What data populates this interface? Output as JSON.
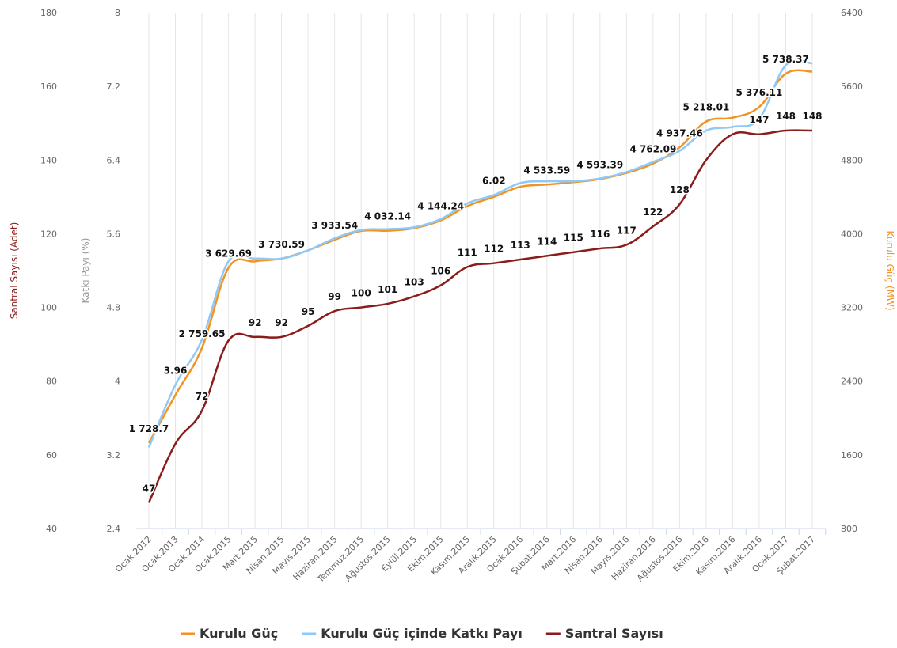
{
  "chart_data": {
    "type": "line",
    "categories": [
      "Ocak.2012",
      "Ocak.2013",
      "Ocak.2014",
      "Ocak.2015",
      "Mart.2015",
      "Nisan.2015",
      "Mayıs.2015",
      "Haziran.2015",
      "Temmuz.2015",
      "Ağustos.2015",
      "Eylül.2015",
      "Ekim.2015",
      "Kasım.2015",
      "Aralık.2015",
      "Ocak.2016",
      "Şubat.2016",
      "Mart.2016",
      "Nisan.2016",
      "Mayıs.2016",
      "Haziran.2016",
      "Ağustos.2016",
      "Ekim.2016",
      "Kasım.2016",
      "Aralık.2016",
      "Ocak.2017",
      "Şubat.2017"
    ],
    "y_label": "Santral Sayısı (Adet)",
    "y2_label": "Katkı Payı (%)",
    "y3_label": "Kurulu Güç (MW)",
    "ylim": [
      40,
      180
    ],
    "yticks": [
      40,
      60,
      80,
      100,
      120,
      140,
      160,
      180
    ],
    "y2lim": [
      2.4,
      8
    ],
    "y2ticks": [
      2.4,
      3.2,
      4,
      4.8,
      5.6,
      6.4,
      7.2,
      8
    ],
    "y3lim": [
      800,
      6400
    ],
    "y3ticks": [
      800,
      1600,
      2400,
      3200,
      4000,
      4800,
      5600,
      6400
    ],
    "grid": true,
    "legend": "bottom",
    "series": [
      {
        "name": "Kurulu Güç",
        "color": "#f39324",
        "axis": "y3",
        "values": [
          1728.7,
          2250,
          2759.65,
          3629.69,
          3700,
          3730.59,
          3820,
          3933.54,
          4030,
          4032.14,
          4060,
          4144.24,
          4300,
          4400,
          4510,
          4533.59,
          4560,
          4593.39,
          4660,
          4762.09,
          4937.46,
          5218.01,
          5260,
          5376.11,
          5738.37,
          5760
        ],
        "value_labels": [
          "1 728.7",
          null,
          "2 759.65",
          "3 629.69",
          null,
          "3 730.59",
          null,
          "3 933.54",
          null,
          "4 032.14",
          null,
          "4 144.24",
          null,
          null,
          null,
          "4 533.59",
          null,
          "4 593.39",
          null,
          "4 762.09",
          "4 937.46",
          "5 218.01",
          null,
          "5 376.11",
          "5 738.37",
          null
        ]
      },
      {
        "name": "Kurulu Güç içinde Katkı Payı",
        "color": "#8ec9f7",
        "axis": "y2",
        "values": [
          3.28,
          3.96,
          4.45,
          5.3,
          5.33,
          5.33,
          5.42,
          5.55,
          5.64,
          5.65,
          5.67,
          5.76,
          5.93,
          6.02,
          6.15,
          6.17,
          6.17,
          6.2,
          6.27,
          6.38,
          6.5,
          6.72,
          6.76,
          6.85,
          7.43,
          7.45
        ],
        "value_labels": [
          null,
          "3.96",
          null,
          null,
          null,
          null,
          null,
          null,
          null,
          null,
          null,
          null,
          null,
          "6.02",
          null,
          null,
          null,
          null,
          null,
          null,
          null,
          null,
          null,
          null,
          null,
          null
        ]
      },
      {
        "name": "Santral Sayısı",
        "color": "#8b1c1c",
        "axis": "y",
        "values": [
          47,
          63,
          72,
          91,
          92,
          92,
          95,
          99,
          100,
          101,
          103,
          106,
          111,
          112,
          113,
          114,
          115,
          116,
          117,
          122,
          128,
          140,
          147,
          147,
          148,
          148
        ],
        "value_labels": [
          "47",
          null,
          "72",
          null,
          "92",
          "92",
          "95",
          "99",
          "100",
          "101",
          "103",
          "106",
          "111",
          "112",
          "113",
          "114",
          "115",
          "116",
          "117",
          "122",
          "128",
          null,
          null,
          "147",
          "148",
          "148"
        ]
      }
    ]
  }
}
